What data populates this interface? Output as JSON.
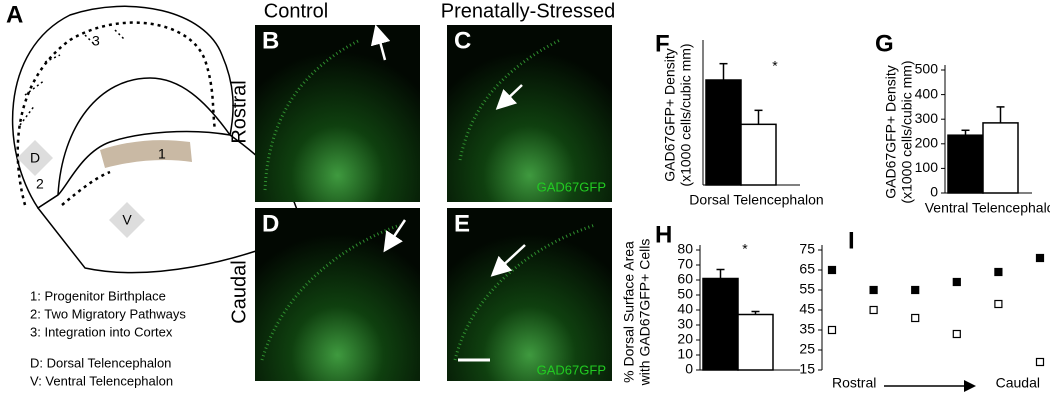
{
  "panel_a": {
    "letter": "A",
    "region_labels": [
      "3",
      "1",
      "2"
    ],
    "area_labels": [
      "D",
      "V"
    ],
    "legend": [
      "1: Progenitor Birthplace",
      "2: Two Migratory Pathways",
      "3: Integration into Cortex",
      "D: Dorsal Telencephalon",
      "V: Ventral Telencephalon"
    ]
  },
  "column_headers": [
    "Control",
    "Prenatally-Stressed"
  ],
  "row_headers": [
    "Rostral",
    "Caudal"
  ],
  "images": [
    {
      "letter": "B"
    },
    {
      "letter": "C",
      "stain": "GAD67GFP"
    },
    {
      "letter": "D"
    },
    {
      "letter": "E",
      "stain": "GAD67GFP"
    }
  ],
  "chart_data": [
    {
      "type": "bar",
      "panel": "F",
      "ylabel": [
        "GAD67GFP+ Density",
        "(x1000 cells/cubic mm)"
      ],
      "categories": [
        "Dorsal Telencephalon"
      ],
      "series": [
        {
          "color": "#000000",
          "values": [
            45
          ],
          "errors": [
            7
          ]
        },
        {
          "color": "#ffffff",
          "values": [
            26
          ],
          "errors": [
            6
          ]
        }
      ],
      "ylim": [
        0,
        60
      ],
      "annotation": "*"
    },
    {
      "type": "bar",
      "panel": "G",
      "ylabel": [
        "GAD67GFP+ Density",
        "(x1000 cells/cubic mm)"
      ],
      "categories": [
        "Ventral Telencephalon"
      ],
      "series": [
        {
          "color": "#000000",
          "values": [
            235
          ],
          "errors": [
            20
          ]
        },
        {
          "color": "#ffffff",
          "values": [
            285
          ],
          "errors": [
            65
          ]
        }
      ],
      "ylim": [
        0,
        500
      ],
      "yticks": [
        0,
        100,
        200,
        300,
        400,
        500
      ]
    },
    {
      "type": "bar",
      "panel": "H",
      "ylabel": [
        "% Dorsal Surface Area",
        "with GAD67GFP+ Cells"
      ],
      "categories": [
        null
      ],
      "series": [
        {
          "color": "#000000",
          "values": [
            61
          ],
          "errors": [
            6
          ]
        },
        {
          "color": "#ffffff",
          "values": [
            37
          ],
          "errors": [
            2
          ]
        }
      ],
      "ylim": [
        0,
        80
      ],
      "yticks": [
        0,
        10,
        20,
        30,
        40,
        50,
        60,
        70,
        80
      ],
      "annotation": "*"
    },
    {
      "type": "scatter",
      "panel": "I",
      "categories": [
        null,
        null,
        null,
        null,
        null,
        null
      ],
      "x_axis_labels": [
        "Rostral",
        "Caudal"
      ],
      "series": [
        {
          "color": "#000000",
          "values": [
            65,
            55,
            55,
            59,
            64,
            71
          ]
        },
        {
          "color": "#ffffff",
          "values": [
            35,
            45,
            41,
            33,
            48,
            19
          ]
        }
      ],
      "ylim": [
        15,
        75
      ],
      "yticks": [
        15,
        25,
        35,
        45,
        55,
        65,
        75
      ]
    }
  ]
}
